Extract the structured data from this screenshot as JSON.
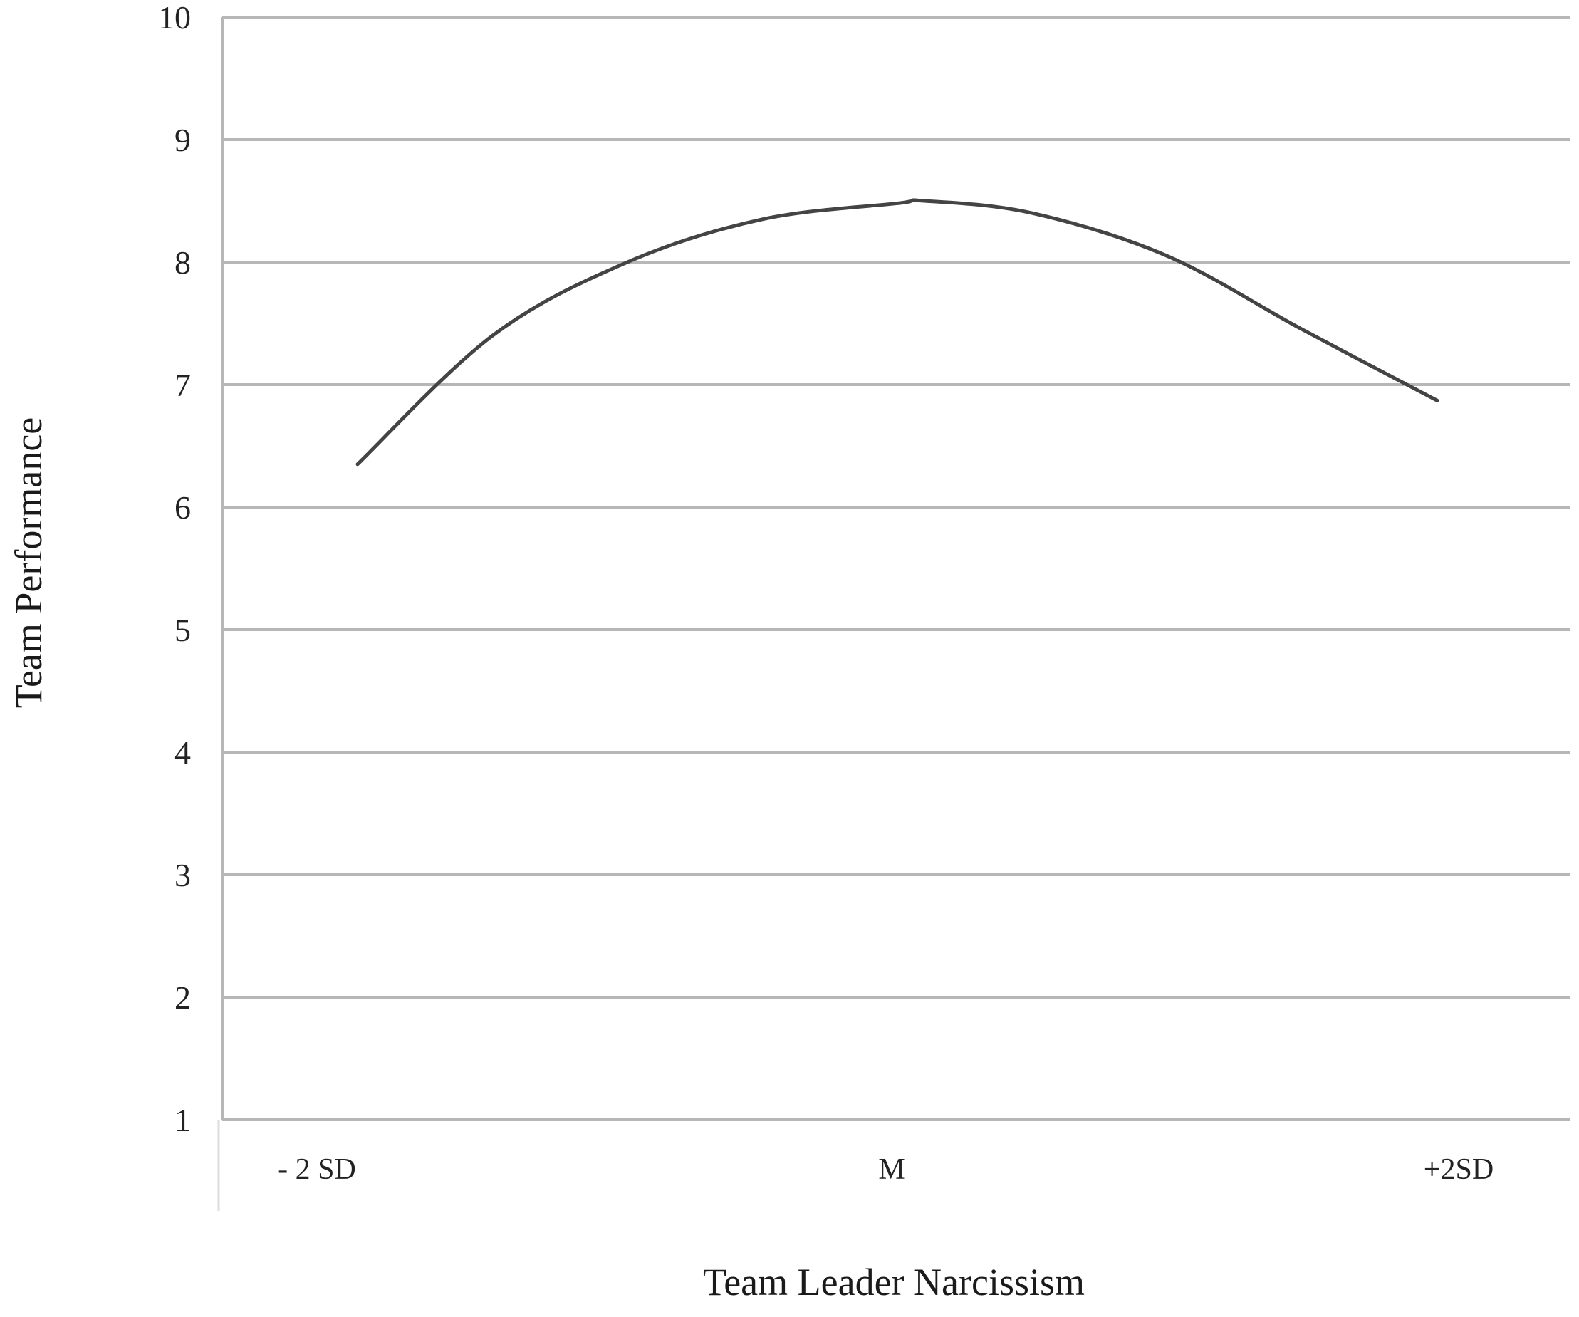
{
  "chart_data": {
    "type": "line",
    "xlabel": "Team Leader Narcissism",
    "ylabel": "Team Performance",
    "categories": [
      "- 2 SD",
      "M",
      "+2SD"
    ],
    "yticks": [
      "1",
      "2",
      "3",
      "4",
      "5",
      "6",
      "7",
      "8",
      "9",
      "10"
    ],
    "ylim": [
      1,
      10
    ],
    "grid": true,
    "legend": "none",
    "line_color": "#444444",
    "grid_color": "#b7b7b7",
    "series": [
      {
        "x": [
          -2,
          -1.5,
          -1,
          -0.5,
          0,
          0.1,
          0.5,
          1,
          1.5,
          2
        ],
        "values": [
          6.35,
          7.4,
          8.0,
          8.35,
          8.48,
          8.5,
          8.4,
          8.05,
          7.45,
          6.87
        ]
      }
    ]
  }
}
